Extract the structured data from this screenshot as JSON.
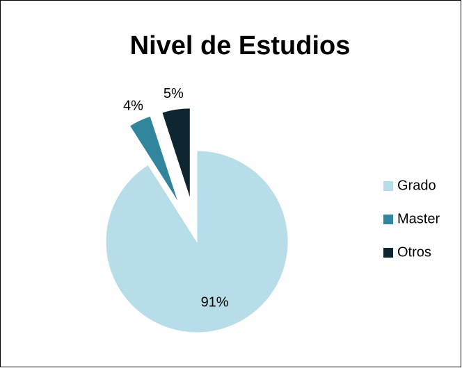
{
  "chart_data": {
    "type": "pie",
    "title": "Nivel de Estudios",
    "categories": [
      "Grado",
      "Master",
      "Otros"
    ],
    "values": [
      91,
      4,
      5
    ],
    "value_labels": [
      "91%",
      "4%",
      "5%"
    ],
    "colors": [
      "#b7dde8",
      "#31859c",
      "#0e2630"
    ],
    "legend": "right"
  }
}
